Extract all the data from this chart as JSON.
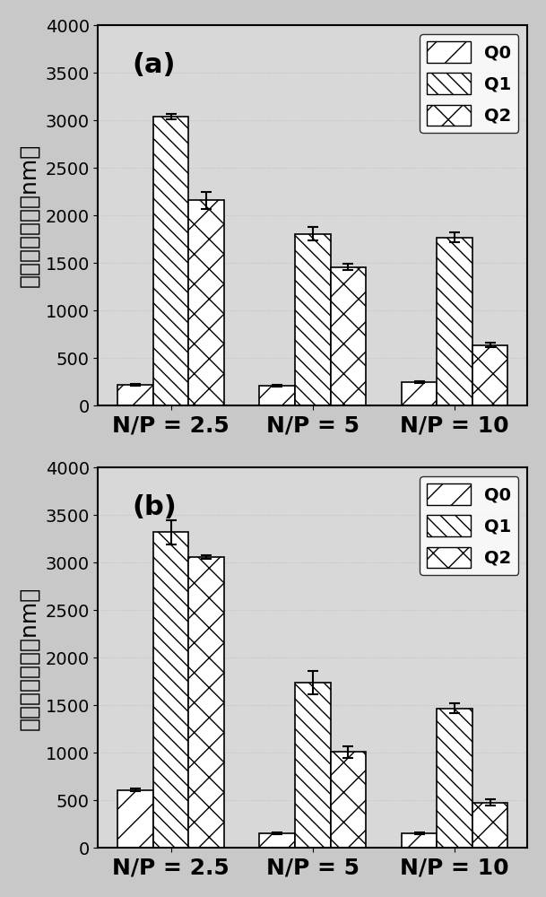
{
  "subplot_a": {
    "label": "(a)",
    "groups": [
      "N/P = 2.5",
      "N/P = 5",
      "N/P = 10"
    ],
    "Q0_values": [
      220,
      210,
      250
    ],
    "Q0_errors": [
      10,
      8,
      10
    ],
    "Q1_values": [
      3040,
      1810,
      1770
    ],
    "Q1_errors": [
      30,
      70,
      50
    ],
    "Q2_values": [
      2160,
      1460,
      640
    ],
    "Q2_errors": [
      90,
      30,
      25
    ]
  },
  "subplot_b": {
    "label": "(b)",
    "groups": [
      "N/P = 2.5",
      "N/P = 5",
      "N/P = 10"
    ],
    "Q0_values": [
      610,
      155,
      155
    ],
    "Q0_errors": [
      15,
      10,
      10
    ],
    "Q1_values": [
      3320,
      1740,
      1470
    ],
    "Q1_errors": [
      130,
      120,
      50
    ],
    "Q2_values": [
      3060,
      1010,
      480
    ],
    "Q2_errors": [
      20,
      60,
      30
    ]
  },
  "ylabel": "水动力学粒径（nm）",
  "xlabel": "",
  "ylim": [
    0,
    4000
  ],
  "yticks": [
    0,
    500,
    1000,
    1500,
    2000,
    2500,
    3000,
    3500,
    4000
  ],
  "legend_labels": [
    "Q0",
    "Q1",
    "Q2"
  ],
  "bar_width": 0.25,
  "hatch_Q0": "/",
  "hatch_Q1": "\\\\",
  "hatch_Q2": "x",
  "facecolor": "white",
  "edgecolor": "black",
  "bg_color": "#d0d0d0",
  "grid_color": "#ffffff",
  "label_fontsize": 18,
  "tick_fontsize": 14,
  "legend_fontsize": 14
}
